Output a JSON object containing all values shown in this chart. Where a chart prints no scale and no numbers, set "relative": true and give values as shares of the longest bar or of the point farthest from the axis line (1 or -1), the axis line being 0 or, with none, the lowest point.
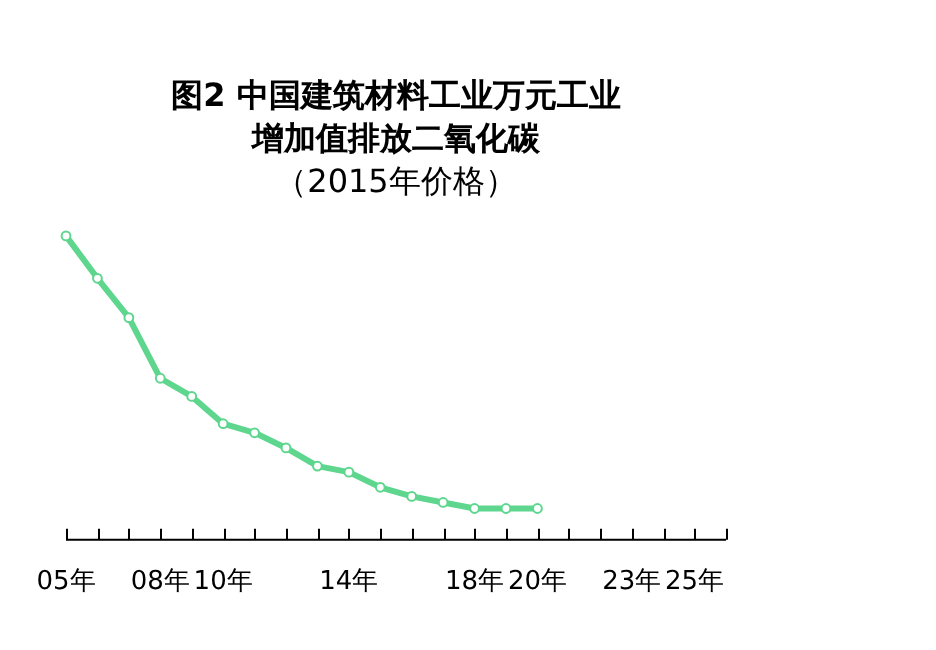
{
  "chart_data": {
    "type": "line",
    "title": "图2 中国建筑材料工业万元工业增加值排放二氧化碳",
    "subtitle": "（2015年价格）",
    "relative": true,
    "categories": [
      "05年",
      null,
      null,
      "08年",
      null,
      "10年",
      null,
      null,
      null,
      "14年",
      null,
      null,
      null,
      "18年",
      null,
      "20年",
      null,
      null,
      "23年",
      null,
      "25年",
      null
    ],
    "series": [
      {
        "color": "#5ed68e",
        "values": [
          1,
          0.86,
          0.73,
          0.53,
          0.47,
          0.38,
          0.35,
          0.3,
          0.24,
          0.22,
          0.17,
          0.14,
          0.12,
          0.1,
          0.1,
          0.1,
          null,
          null,
          null,
          null,
          null,
          null
        ]
      }
    ],
    "grid": false,
    "legend": false,
    "marker": "circle",
    "line_style": "solid"
  }
}
